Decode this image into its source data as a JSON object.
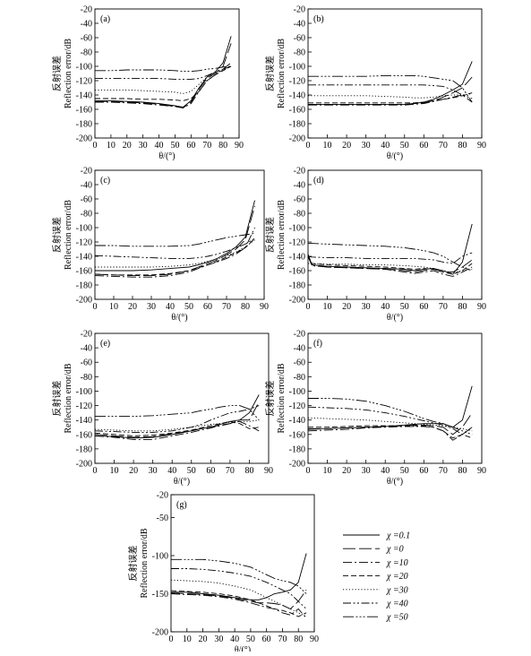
{
  "figure": {
    "ylabel_cn": "反射误差",
    "ylabel_en": "Reflection error/dB",
    "xlabel": "θ/(°)"
  },
  "legend": {
    "entries": [
      {
        "label": "χ =0.1",
        "dash": "solid"
      },
      {
        "label": "χ =0",
        "dash": "longdash"
      },
      {
        "label": "χ =10",
        "dash": "dashdot"
      },
      {
        "label": "χ =20",
        "dash": "dash"
      },
      {
        "label": "χ =30",
        "dash": "dot"
      },
      {
        "label": "χ =40",
        "dash": "dashdotdot"
      },
      {
        "label": "χ =50",
        "dash": "dashdotdot2"
      }
    ]
  },
  "chart_data": [
    {
      "type": "line",
      "panel": "(a)",
      "x": [
        0,
        10,
        20,
        30,
        40,
        50,
        55,
        60,
        65,
        70,
        75,
        80,
        85
      ],
      "xlim": [
        0,
        90
      ],
      "ylim": [
        -200,
        -20
      ],
      "xticks": [
        0,
        10,
        20,
        30,
        40,
        50,
        60,
        70,
        80,
        90
      ],
      "yticks": [
        -20,
        -40,
        -60,
        -80,
        -100,
        -120,
        -140,
        -160,
        -180,
        -200
      ],
      "xlabel": "θ/(°)",
      "ylabel": "Reflection error/dB",
      "series": [
        {
          "values": [
            -148,
            -148,
            -149,
            -150,
            -152,
            -155,
            -157,
            -148,
            -130,
            -115,
            -108,
            -95,
            -58
          ]
        },
        {
          "values": [
            -149,
            -149,
            -150,
            -151,
            -153,
            -156,
            -158,
            -150,
            -132,
            -117,
            -110,
            -100,
            -68
          ]
        },
        {
          "values": [
            -150,
            -150,
            -151,
            -152,
            -154,
            -156,
            -158,
            -152,
            -135,
            -120,
            -112,
            -104,
            -95
          ]
        },
        {
          "values": [
            -145,
            -145,
            -145,
            -146,
            -146,
            -147,
            -148,
            -145,
            -135,
            -120,
            -112,
            -106,
            -100
          ]
        },
        {
          "values": [
            -133,
            -133,
            -133,
            -134,
            -135,
            -136,
            -138,
            -135,
            -125,
            -115,
            -110,
            -105,
            -100
          ]
        },
        {
          "values": [
            -117,
            -117,
            -117,
            -117,
            -117,
            -118,
            -118,
            -118,
            -117,
            -113,
            -108,
            -104,
            -100
          ]
        },
        {
          "values": [
            -106,
            -106,
            -105,
            -105,
            -105,
            -106,
            -107,
            -107,
            -106,
            -104,
            -103,
            -101,
            -100
          ]
        }
      ]
    },
    {
      "type": "line",
      "panel": "(b)",
      "x": [
        0,
        10,
        20,
        30,
        40,
        50,
        55,
        60,
        65,
        70,
        75,
        80,
        85
      ],
      "xlim": [
        0,
        90
      ],
      "ylim": [
        -200,
        -20
      ],
      "xticks": [
        0,
        10,
        20,
        30,
        40,
        50,
        60,
        70,
        80,
        90
      ],
      "yticks": [
        -20,
        -40,
        -60,
        -80,
        -100,
        -120,
        -140,
        -160,
        -180,
        -200
      ],
      "xlabel": "θ/(°)",
      "ylabel": "Reflection error/dB",
      "series": [
        {
          "values": [
            -153,
            -153,
            -153,
            -153,
            -153,
            -153,
            -152,
            -150,
            -146,
            -140,
            -133,
            -125,
            -93
          ]
        },
        {
          "values": [
            -153,
            -153,
            -153,
            -153,
            -153,
            -153,
            -152,
            -151,
            -148,
            -143,
            -137,
            -130,
            -115
          ]
        },
        {
          "values": [
            -154,
            -154,
            -154,
            -154,
            -154,
            -154,
            -153,
            -152,
            -149,
            -146,
            -143,
            -140,
            -150
          ]
        },
        {
          "values": [
            -151,
            -151,
            -151,
            -151,
            -151,
            -151,
            -151,
            -150,
            -148,
            -146,
            -144,
            -141,
            -137
          ]
        },
        {
          "values": [
            -141,
            -141,
            -141,
            -141,
            -142,
            -143,
            -144,
            -144,
            -143,
            -141,
            -140,
            -140,
            -138
          ]
        },
        {
          "values": [
            -126,
            -126,
            -126,
            -126,
            -126,
            -126,
            -126,
            -126,
            -127,
            -128,
            -133,
            -140,
            -145
          ]
        },
        {
          "values": [
            -114,
            -114,
            -114,
            -114,
            -113,
            -113,
            -113,
            -114,
            -116,
            -118,
            -120,
            -130,
            -150
          ]
        }
      ]
    },
    {
      "type": "line",
      "panel": "(c)",
      "x": [
        0,
        10,
        20,
        30,
        40,
        50,
        55,
        60,
        65,
        70,
        75,
        80,
        85
      ],
      "xlim": [
        0,
        90
      ],
      "ylim": [
        -200,
        -20
      ],
      "xticks": [
        0,
        10,
        20,
        30,
        40,
        50,
        60,
        70,
        80,
        90
      ],
      "yticks": [
        -20,
        -40,
        -60,
        -80,
        -100,
        -120,
        -140,
        -160,
        -180,
        -200
      ],
      "xlabel": "θ/(°)",
      "ylabel": "Reflection error/dB",
      "series": [
        {
          "values": [
            -160,
            -160,
            -160,
            -159,
            -157,
            -155,
            -152,
            -148,
            -143,
            -136,
            -127,
            -113,
            -62
          ]
        },
        {
          "values": [
            -165,
            -166,
            -167,
            -167,
            -165,
            -160,
            -155,
            -150,
            -145,
            -138,
            -130,
            -117,
            -70
          ]
        },
        {
          "values": [
            -167,
            -168,
            -169,
            -169,
            -167,
            -162,
            -157,
            -152,
            -148,
            -143,
            -137,
            -128,
            -100
          ]
        },
        {
          "values": [
            -165,
            -166,
            -166,
            -166,
            -164,
            -160,
            -156,
            -152,
            -147,
            -141,
            -135,
            -128,
            -115
          ]
        },
        {
          "values": [
            -155,
            -155,
            -155,
            -155,
            -154,
            -152,
            -150,
            -147,
            -144,
            -139,
            -134,
            -127,
            -117
          ]
        },
        {
          "values": [
            -139,
            -140,
            -141,
            -142,
            -143,
            -143,
            -142,
            -140,
            -137,
            -133,
            -128,
            -123,
            -115
          ]
        },
        {
          "values": [
            -125,
            -125,
            -126,
            -126,
            -126,
            -125,
            -123,
            -120,
            -117,
            -114,
            -112,
            -110,
            -108
          ]
        }
      ]
    },
    {
      "type": "line",
      "panel": "(d)",
      "x": [
        0,
        2,
        10,
        20,
        30,
        40,
        50,
        55,
        60,
        65,
        70,
        75,
        80,
        85
      ],
      "xlim": [
        0,
        90
      ],
      "ylim": [
        -200,
        -20
      ],
      "xticks": [
        0,
        10,
        20,
        30,
        40,
        50,
        60,
        70,
        80,
        90
      ],
      "yticks": [
        -20,
        -40,
        -60,
        -80,
        -100,
        -120,
        -140,
        -160,
        -180,
        -200
      ],
      "xlabel": "θ/(°)",
      "ylabel": "Reflection error/dB",
      "series": [
        {
          "values": [
            -137,
            -152,
            -154,
            -155,
            -156,
            -157,
            -158,
            -160,
            -158,
            -157,
            -160,
            -165,
            -148,
            -95
          ]
        },
        {
          "values": [
            -140,
            -152,
            -155,
            -156,
            -157,
            -158,
            -160,
            -162,
            -160,
            -158,
            -162,
            -162,
            -155,
            -145
          ]
        },
        {
          "values": [
            -140,
            -153,
            -155,
            -156,
            -157,
            -158,
            -162,
            -164,
            -162,
            -160,
            -165,
            -168,
            -162,
            -155
          ]
        },
        {
          "values": [
            -138,
            -150,
            -152,
            -153,
            -154,
            -155,
            -157,
            -158,
            -157,
            -158,
            -162,
            -165,
            -160,
            -150
          ]
        },
        {
          "values": [
            -150,
            -150,
            -151,
            -151,
            -152,
            -152,
            -153,
            -154,
            -155,
            -157,
            -160,
            -163,
            -160,
            -158
          ]
        },
        {
          "values": [
            -140,
            -141,
            -142,
            -142,
            -143,
            -143,
            -143,
            -143,
            -144,
            -145,
            -148,
            -150,
            -140,
            -135
          ]
        },
        {
          "values": [
            -122,
            -122,
            -123,
            -124,
            -125,
            -126,
            -128,
            -130,
            -132,
            -135,
            -140,
            -148,
            -155,
            -160
          ]
        }
      ]
    },
    {
      "type": "line",
      "panel": "(e)",
      "x": [
        0,
        10,
        20,
        30,
        40,
        50,
        55,
        60,
        65,
        70,
        75,
        80,
        85
      ],
      "xlim": [
        0,
        90
      ],
      "ylim": [
        -200,
        -20
      ],
      "xticks": [
        0,
        10,
        20,
        30,
        40,
        50,
        60,
        70,
        80,
        90
      ],
      "yticks": [
        -20,
        -40,
        -60,
        -80,
        -100,
        -120,
        -140,
        -160,
        -180,
        -200
      ],
      "xlabel": "θ/(°)",
      "ylabel": "Reflection error/dB",
      "series": [
        {
          "values": [
            -162,
            -163,
            -165,
            -164,
            -160,
            -155,
            -152,
            -150,
            -146,
            -142,
            -140,
            -130,
            -105
          ]
        },
        {
          "values": [
            -160,
            -162,
            -164,
            -163,
            -159,
            -155,
            -152,
            -150,
            -147,
            -145,
            -140,
            -140,
            -115
          ]
        },
        {
          "values": [
            -162,
            -164,
            -167,
            -167,
            -162,
            -157,
            -154,
            -151,
            -148,
            -145,
            -142,
            -148,
            -155
          ]
        },
        {
          "values": [
            -158,
            -160,
            -162,
            -161,
            -158,
            -154,
            -151,
            -148,
            -145,
            -142,
            -145,
            -152,
            -150
          ]
        },
        {
          "values": [
            -153,
            -154,
            -155,
            -155,
            -153,
            -150,
            -148,
            -146,
            -145,
            -143,
            -142,
            -142,
            -140
          ]
        },
        {
          "values": [
            -155,
            -156,
            -157,
            -157,
            -155,
            -150,
            -146,
            -140,
            -135,
            -130,
            -128,
            -125,
            -120
          ]
        },
        {
          "values": [
            -135,
            -135,
            -135,
            -134,
            -132,
            -130,
            -127,
            -125,
            -122,
            -120,
            -120,
            -125,
            -140
          ]
        }
      ]
    },
    {
      "type": "line",
      "panel": "(f)",
      "x": [
        0,
        10,
        20,
        30,
        40,
        50,
        55,
        60,
        65,
        70,
        75,
        80,
        85
      ],
      "xlim": [
        0,
        90
      ],
      "ylim": [
        -200,
        -20
      ],
      "xticks": [
        0,
        10,
        20,
        30,
        40,
        50,
        60,
        70,
        80,
        90
      ],
      "yticks": [
        -20,
        -40,
        -60,
        -80,
        -100,
        -120,
        -140,
        -160,
        -180,
        -200
      ],
      "xlabel": "θ/(°)",
      "ylabel": "Reflection error/dB",
      "series": [
        {
          "values": [
            -152,
            -152,
            -151,
            -150,
            -149,
            -147,
            -146,
            -145,
            -145,
            -145,
            -150,
            -140,
            -93
          ]
        },
        {
          "values": [
            -153,
            -152,
            -151,
            -150,
            -149,
            -148,
            -147,
            -147,
            -148,
            -150,
            -160,
            -150,
            -130
          ]
        },
        {
          "values": [
            -155,
            -154,
            -153,
            -151,
            -150,
            -149,
            -149,
            -149,
            -150,
            -155,
            -168,
            -160,
            -150
          ]
        },
        {
          "values": [
            -150,
            -150,
            -149,
            -148,
            -148,
            -148,
            -148,
            -148,
            -150,
            -155,
            -165,
            -160,
            -165
          ]
        },
        {
          "values": [
            -137,
            -138,
            -139,
            -140,
            -142,
            -144,
            -145,
            -146,
            -147,
            -148,
            -150,
            -152,
            -155
          ]
        },
        {
          "values": [
            -122,
            -123,
            -124,
            -126,
            -130,
            -135,
            -138,
            -141,
            -144,
            -147,
            -152,
            -160,
            -150
          ]
        },
        {
          "values": [
            -110,
            -110,
            -111,
            -114,
            -120,
            -128,
            -133,
            -138,
            -142,
            -145,
            -150,
            -155,
            -160
          ]
        }
      ]
    },
    {
      "type": "line",
      "panel": "(g)",
      "x": [
        0,
        10,
        20,
        30,
        40,
        50,
        55,
        60,
        65,
        70,
        75,
        80,
        85
      ],
      "xlim": [
        0,
        90
      ],
      "ylim": [
        -200,
        -20
      ],
      "xticks": [
        0,
        10,
        20,
        30,
        40,
        50,
        60,
        70,
        80,
        90
      ],
      "yticks": [
        -20,
        -50,
        -100,
        -150,
        -200
      ],
      "xlabel": "θ/(°)",
      "ylabel": "Reflection error/dB",
      "series": [
        {
          "values": [
            -148,
            -148,
            -150,
            -152,
            -155,
            -158,
            -158,
            -155,
            -150,
            -148,
            -145,
            -135,
            -97
          ]
        },
        {
          "values": [
            -149,
            -150,
            -151,
            -153,
            -156,
            -160,
            -162,
            -162,
            -163,
            -165,
            -170,
            -160,
            -145
          ]
        },
        {
          "values": [
            -150,
            -151,
            -152,
            -154,
            -157,
            -162,
            -165,
            -168,
            -170,
            -175,
            -178,
            -170,
            -182
          ]
        },
        {
          "values": [
            -146,
            -147,
            -148,
            -150,
            -153,
            -158,
            -162,
            -166,
            -170,
            -172,
            -175,
            -180,
            -175
          ]
        },
        {
          "values": [
            -132,
            -133,
            -134,
            -136,
            -140,
            -145,
            -150,
            -155,
            -160,
            -165,
            -170,
            -175,
            -180
          ]
        },
        {
          "values": [
            -117,
            -117,
            -118,
            -120,
            -123,
            -127,
            -131,
            -135,
            -140,
            -145,
            -150,
            -160,
            -170
          ]
        },
        {
          "values": [
            -105,
            -105,
            -105,
            -107,
            -110,
            -115,
            -120,
            -125,
            -130,
            -133,
            -135,
            -140,
            -150
          ]
        }
      ]
    }
  ]
}
